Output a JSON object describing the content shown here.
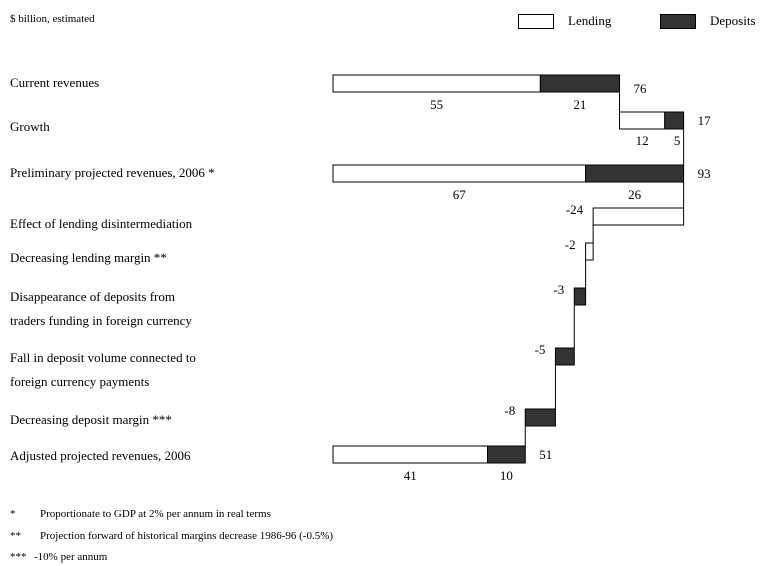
{
  "units_note": "$ billion, estimated",
  "legend": [
    {
      "label": "Lending",
      "color": "#ffffff"
    },
    {
      "label": "Deposits",
      "color": "#333333"
    }
  ],
  "chart_data": {
    "type": "bar",
    "subtype": "waterfall",
    "colors": {
      "lending": "#ffffff",
      "deposits": "#333333"
    },
    "rows": [
      {
        "label": [
          "Current revenues"
        ],
        "lending": 55,
        "deposits": 21,
        "total": "76"
      },
      {
        "label": [
          "Growth"
        ],
        "lending": 12,
        "deposits": 5,
        "total": "17"
      },
      {
        "label": [
          "Preliminary projected revenues, 2006 *"
        ],
        "lending": 67,
        "deposits": 26,
        "total": "93"
      },
      {
        "label": [
          "Effect of lending disintermediation"
        ],
        "lending": -24,
        "deposits": 0,
        "total": "-24"
      },
      {
        "label": [
          "Decreasing lending margin **"
        ],
        "lending": -2,
        "deposits": 0,
        "total": "-2"
      },
      {
        "label": [
          "Disappearance of deposits from",
          "traders funding in foreign currency"
        ],
        "lending": 0,
        "deposits": -3,
        "total": "-3"
      },
      {
        "label": [
          "Fall in deposit volume connected to",
          "foreign currency payments"
        ],
        "lending": 0,
        "deposits": -5,
        "total": "-5"
      },
      {
        "label": [
          "Decreasing deposit margin ***"
        ],
        "lending": 0,
        "deposits": -8,
        "total": "-8"
      },
      {
        "label": [
          "Adjusted projected revenues, 2006"
        ],
        "lending": 41,
        "deposits": 10,
        "total": "51"
      }
    ]
  },
  "footnotes": [
    {
      "mark": "*",
      "text": "Proportionate to GDP at 2% per annum in real terms"
    },
    {
      "mark": "**",
      "text": "Projection forward of historical margins decrease 1986-96 (-0.5%)"
    },
    {
      "mark": "***",
      "text": "-10% per annum"
    }
  ]
}
